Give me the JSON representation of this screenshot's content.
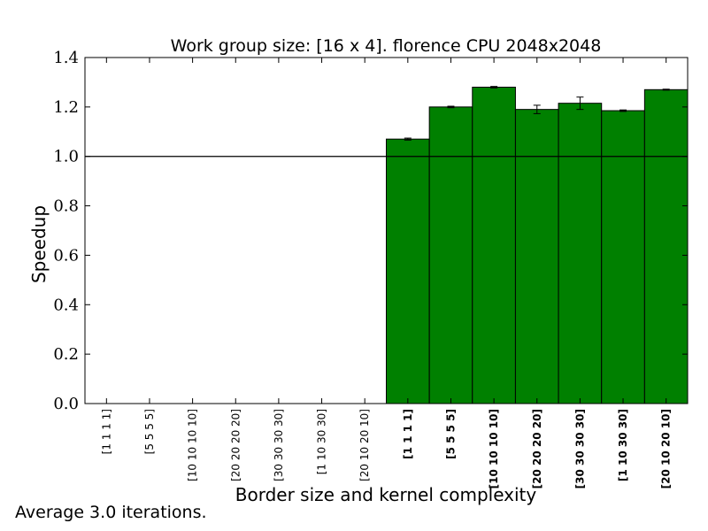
{
  "chart_data": {
    "type": "bar",
    "title": "Work group size: [16 x 4]. florence CPU 2048x2048",
    "xlabel": "Border size and kernel complexity",
    "ylabel": "Speedup",
    "ylim": [
      0.0,
      1.4
    ],
    "yticks": [
      "0.0",
      "0.2",
      "0.4",
      "0.6",
      "0.8",
      "1.0",
      "1.2",
      "1.4"
    ],
    "reference_line": 1.0,
    "grid": false,
    "bar_color": "#008000",
    "categories": [
      {
        "label": "[1 1 1 1]",
        "bold": false
      },
      {
        "label": "[5 5 5 5]",
        "bold": false
      },
      {
        "label": "[10 10 10 10]",
        "bold": false
      },
      {
        "label": "[20 20 20 20]",
        "bold": false
      },
      {
        "label": "[30 30 30 30]",
        "bold": false
      },
      {
        "label": "[1 10 30 30]",
        "bold": false
      },
      {
        "label": "[20 10 20 10]",
        "bold": false
      },
      {
        "label": "[1 1 1 1]",
        "bold": true
      },
      {
        "label": "[5 5 5 5]",
        "bold": true
      },
      {
        "label": "[10 10 10 10]",
        "bold": true
      },
      {
        "label": "[20 20 20 20]",
        "bold": true
      },
      {
        "label": "[30 30 30 30]",
        "bold": true
      },
      {
        "label": "[1 10 30 30]",
        "bold": true
      },
      {
        "label": "[20 10 20 10]",
        "bold": true
      }
    ],
    "values": [
      0,
      0,
      0,
      0,
      0,
      0,
      0,
      1.07,
      1.2,
      1.28,
      1.19,
      1.215,
      1.185,
      1.27
    ],
    "errors": [
      0,
      0,
      0,
      0,
      0,
      0,
      0,
      0.004,
      0.003,
      0.003,
      0.017,
      0.025,
      0.003,
      0.002
    ]
  },
  "footnote": "Average 3.0 iterations."
}
